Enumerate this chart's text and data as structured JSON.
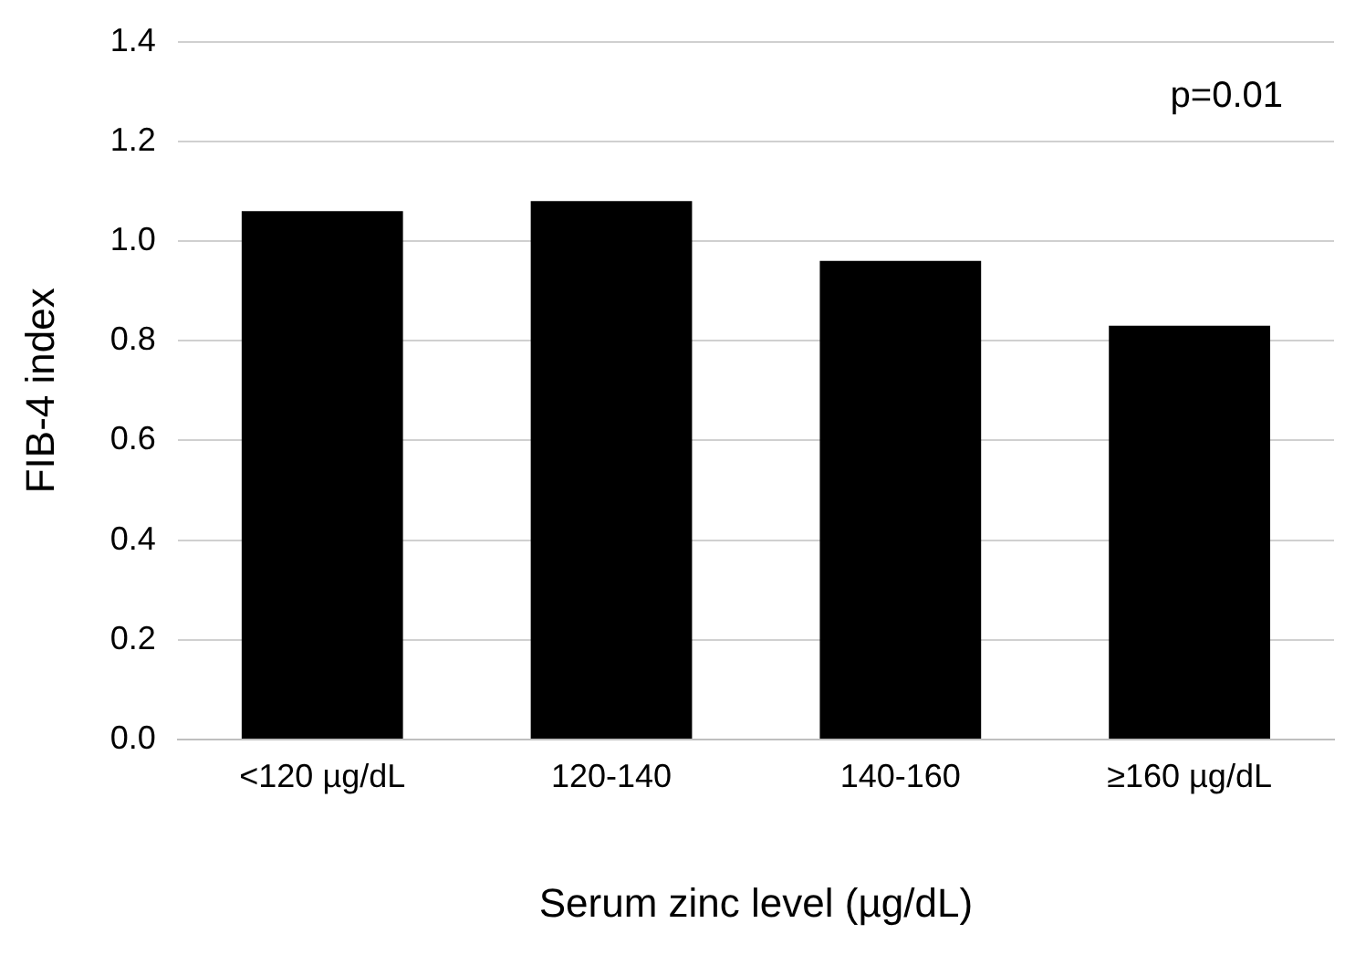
{
  "chart_data": {
    "type": "bar",
    "categories": [
      "<120 µg/dL",
      "120-140",
      "140-160",
      "≥160 µg/dL"
    ],
    "values": [
      1.06,
      1.08,
      0.96,
      0.83
    ],
    "color": "#000000",
    "xlabel": "Serum zinc level (µg/dL)",
    "ylabel": "FIB-4 index",
    "ylim": [
      0,
      1.4
    ],
    "yticks": [
      {
        "value": 0,
        "label": "0.0"
      },
      {
        "value": 0.2,
        "label": "0.2"
      },
      {
        "value": 0.4,
        "label": "0.4"
      },
      {
        "value": 0.6,
        "label": "0.6"
      },
      {
        "value": 0.8,
        "label": "0.8"
      },
      {
        "value": 1,
        "label": "1.0"
      },
      {
        "value": 1.2,
        "label": "1.2"
      },
      {
        "value": 1.4,
        "label": "1.4"
      }
    ],
    "grid": "y",
    "legend": false,
    "annotations": [
      "p=0.01"
    ]
  }
}
